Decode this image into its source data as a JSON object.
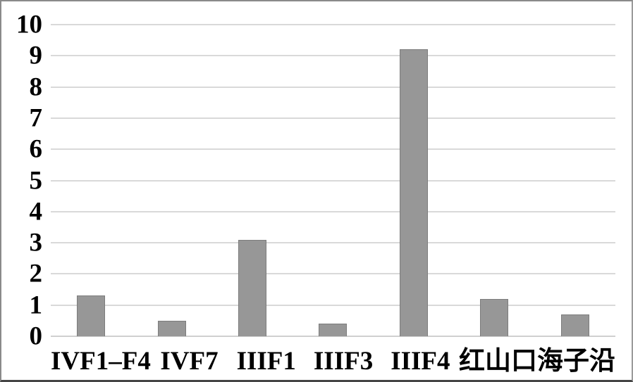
{
  "chart_data": {
    "type": "bar",
    "categories": [
      "IVF1–F4",
      "IVF7",
      "IIIF1",
      "IIIF3",
      "IIIF4",
      "红山口",
      "海子沿"
    ],
    "values": [
      1.3,
      0.5,
      3.1,
      0.4,
      9.2,
      1.2,
      0.7
    ],
    "title": "",
    "xlabel": "",
    "ylabel": "",
    "ylim": [
      0,
      10
    ],
    "yticks": [
      0,
      1,
      2,
      3,
      4,
      5,
      6,
      7,
      8,
      9,
      10
    ],
    "grid": true,
    "legend": false,
    "colors": {
      "bar_fill": "#979797",
      "bar_border": "#7c7c7c",
      "gridline": "#d9d9d9",
      "baseline": "#d0d0d0",
      "text": "#000000",
      "frame": "#8a8a8a",
      "background": "#ffffff"
    }
  }
}
